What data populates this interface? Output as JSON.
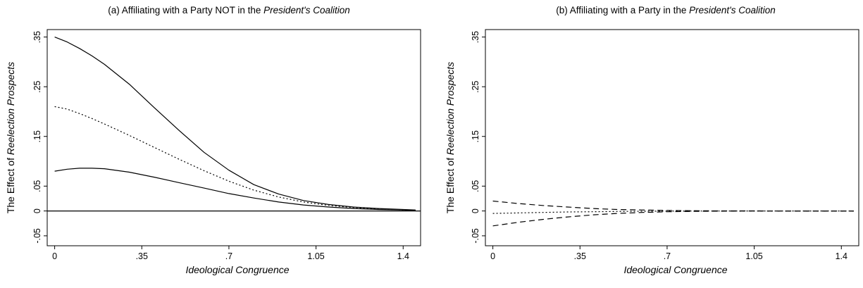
{
  "chart_data": [
    {
      "type": "line",
      "title_prefix": "(a) Affiliating with a Party NOT in the ",
      "title_italic": "President's Coalition",
      "xlabel": "Ideological Congruence",
      "ylabel_prefix": "The Effect of ",
      "ylabel_italic": "Reelection Prospects",
      "xlim": [
        -0.03,
        1.47
      ],
      "ylim": [
        -0.07,
        0.365
      ],
      "x_ticks": [
        {
          "v": 0,
          "label": "0"
        },
        {
          "v": 0.35,
          "label": ".35"
        },
        {
          "v": 0.7,
          "label": ".7"
        },
        {
          "v": 1.05,
          "label": "1.05"
        },
        {
          "v": 1.4,
          "label": "1.4"
        }
      ],
      "y_ticks": [
        {
          "v": -0.05,
          "label": "-.05"
        },
        {
          "v": 0,
          "label": "0"
        },
        {
          "v": 0.05,
          "label": ".05"
        },
        {
          "v": 0.15,
          "label": ".15"
        },
        {
          "v": 0.25,
          "label": ".25"
        },
        {
          "v": 0.35,
          "label": ".35"
        }
      ],
      "zero_line": true,
      "x": [
        0,
        0.05,
        0.1,
        0.15,
        0.2,
        0.3,
        0.4,
        0.5,
        0.6,
        0.7,
        0.8,
        0.9,
        1.0,
        1.1,
        1.2,
        1.3,
        1.4,
        1.45
      ],
      "series": [
        {
          "style": "solid",
          "values": [
            0.35,
            0.34,
            0.327,
            0.312,
            0.295,
            0.255,
            0.208,
            0.162,
            0.118,
            0.082,
            0.053,
            0.034,
            0.021,
            0.013,
            0.008,
            0.005,
            0.003,
            0.002
          ]
        },
        {
          "style": "dotted",
          "values": [
            0.21,
            0.205,
            0.196,
            0.186,
            0.175,
            0.152,
            0.128,
            0.104,
            0.081,
            0.06,
            0.042,
            0.028,
            0.018,
            0.011,
            0.007,
            0.004,
            0.002,
            0.002
          ]
        },
        {
          "style": "solid",
          "values": [
            0.08,
            0.084,
            0.086,
            0.086,
            0.085,
            0.078,
            0.068,
            0.057,
            0.046,
            0.035,
            0.026,
            0.018,
            0.012,
            0.008,
            0.005,
            0.003,
            0.002,
            0.001
          ]
        }
      ]
    },
    {
      "type": "line",
      "title_prefix": "(b) Affiliating with a Party in the ",
      "title_italic": "President's Coalition",
      "xlabel": "Ideological Congruence",
      "ylabel_prefix": "The Effect of ",
      "ylabel_italic": "Reelection Prospects",
      "xlim": [
        -0.03,
        1.47
      ],
      "ylim": [
        -0.07,
        0.365
      ],
      "x_ticks": [
        {
          "v": 0,
          "label": "0"
        },
        {
          "v": 0.35,
          "label": ".35"
        },
        {
          "v": 0.7,
          "label": ".7"
        },
        {
          "v": 1.05,
          "label": "1.05"
        },
        {
          "v": 1.4,
          "label": "1.4"
        }
      ],
      "y_ticks": [
        {
          "v": -0.05,
          "label": "-.05"
        },
        {
          "v": 0,
          "label": "0"
        },
        {
          "v": 0.05,
          "label": ".05"
        },
        {
          "v": 0.15,
          "label": ".15"
        },
        {
          "v": 0.25,
          "label": ".25"
        },
        {
          "v": 0.35,
          "label": ".35"
        }
      ],
      "zero_line": false,
      "x": [
        0,
        0.1,
        0.2,
        0.3,
        0.4,
        0.5,
        0.6,
        0.7,
        0.8,
        0.9,
        1.0,
        1.2,
        1.45
      ],
      "series": [
        {
          "style": "dashed",
          "values": [
            0.02,
            0.015,
            0.011,
            0.008,
            0.005,
            0.003,
            0.002,
            0.001,
            0.0005,
            0.0002,
            0.0001,
            0,
            0
          ]
        },
        {
          "style": "dotted",
          "values": [
            -0.005,
            -0.004,
            -0.003,
            -0.002,
            -0.0015,
            -0.001,
            -0.0006,
            -0.0003,
            -0.0002,
            -0.0001,
            0,
            0,
            0
          ]
        },
        {
          "style": "dashed",
          "values": [
            -0.03,
            -0.023,
            -0.017,
            -0.012,
            -0.008,
            -0.005,
            -0.003,
            -0.0015,
            -0.0008,
            -0.0004,
            -0.0002,
            0,
            0
          ]
        }
      ]
    }
  ]
}
